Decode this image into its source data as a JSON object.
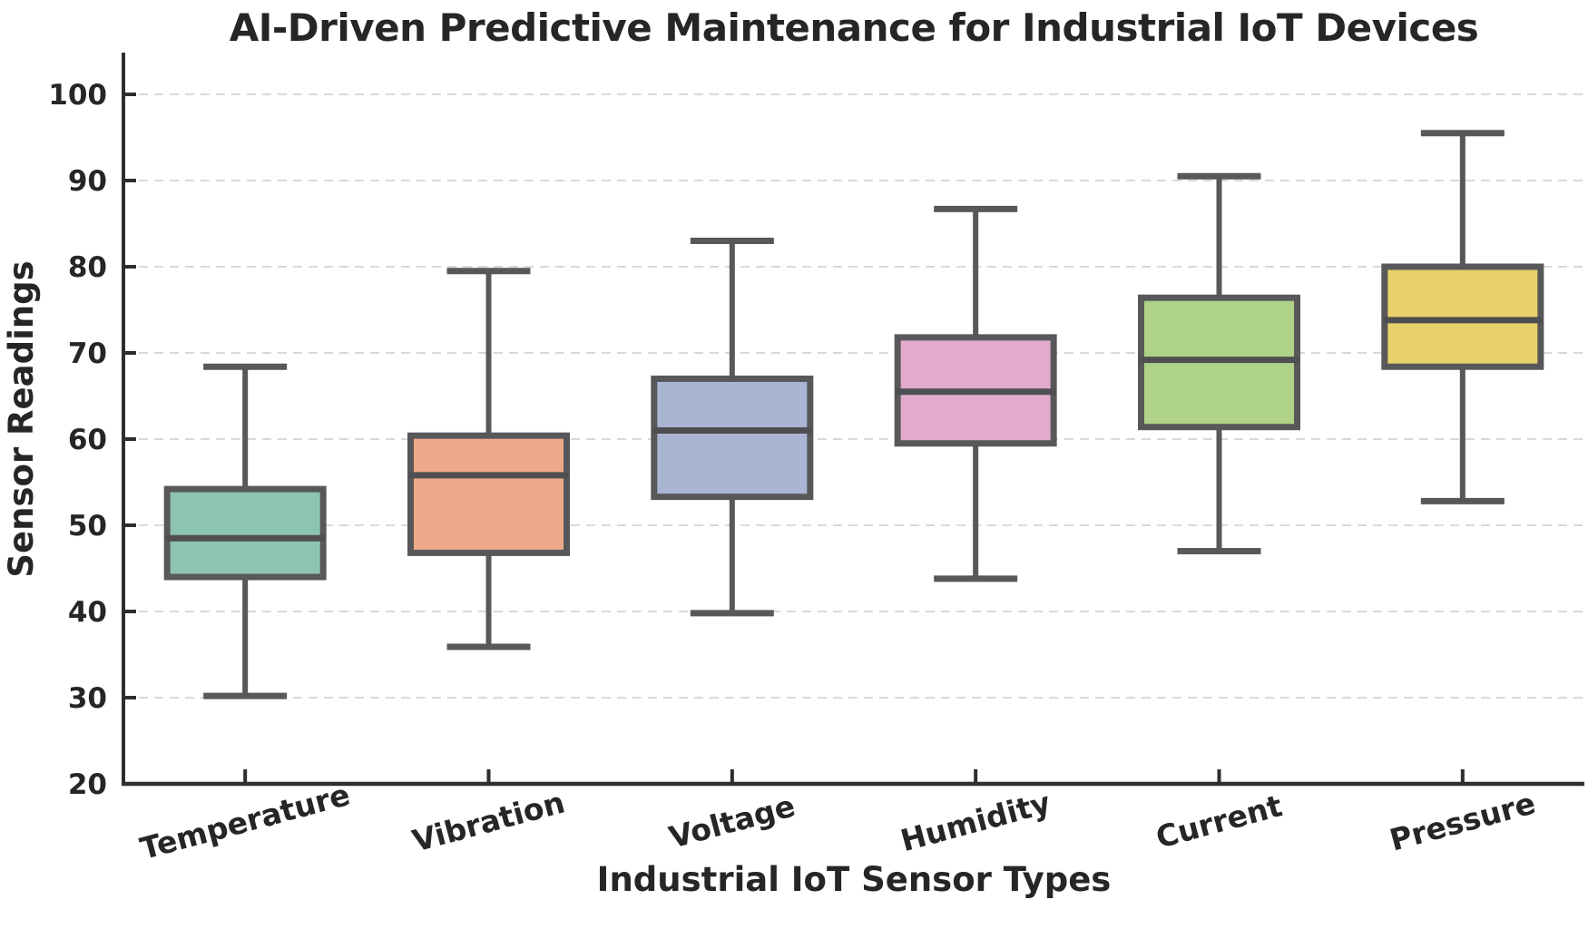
{
  "chart_data": {
    "type": "boxplot",
    "title": "AI-Driven Predictive Maintenance for Industrial IoT Devices",
    "xlabel": "Industrial IoT Sensor Types",
    "ylabel": "Sensor Readings",
    "ylim": [
      20,
      100
    ],
    "yticks": [
      20,
      30,
      40,
      50,
      60,
      70,
      80,
      90,
      100
    ],
    "grid": "horizontal-dashed",
    "legend": "none",
    "categories": [
      "Temperature",
      "Vibration",
      "Voltage",
      "Humidity",
      "Current",
      "Pressure"
    ],
    "series": [
      {
        "category": "Temperature",
        "whisker_low": 30.2,
        "q1": 44.0,
        "median": 48.5,
        "q3": 54.2,
        "whisker_high": 68.4,
        "fill": "#8dc4b0"
      },
      {
        "category": "Vibration",
        "whisker_low": 35.9,
        "q1": 46.8,
        "median": 55.8,
        "q3": 60.4,
        "whisker_high": 79.5,
        "fill": "#efa98a"
      },
      {
        "category": "Voltage",
        "whisker_low": 39.8,
        "q1": 53.3,
        "median": 61.0,
        "q3": 67.0,
        "whisker_high": 83.0,
        "fill": "#a9b5d3"
      },
      {
        "category": "Humidity",
        "whisker_low": 43.8,
        "q1": 59.5,
        "median": 65.5,
        "q3": 71.8,
        "whisker_high": 86.7,
        "fill": "#e2aacd"
      },
      {
        "category": "Current",
        "whisker_low": 47.0,
        "q1": 61.4,
        "median": 69.2,
        "q3": 76.4,
        "whisker_high": 90.5,
        "fill": "#aed287"
      },
      {
        "category": "Pressure",
        "whisker_low": 52.8,
        "q1": 68.4,
        "median": 73.8,
        "q3": 80.0,
        "whisker_high": 95.5,
        "fill": "#e9d16b"
      }
    ],
    "styles": {
      "box_edge_color": "#58585a",
      "median_color": "#4f4f52",
      "whisker_color": "#58585a",
      "spine_color": "#2e2e2e",
      "grid_color": "#d9d9d9",
      "text_color": "#262626",
      "background": "#ffffff",
      "x_tick_label_rotation_deg": 15
    }
  }
}
